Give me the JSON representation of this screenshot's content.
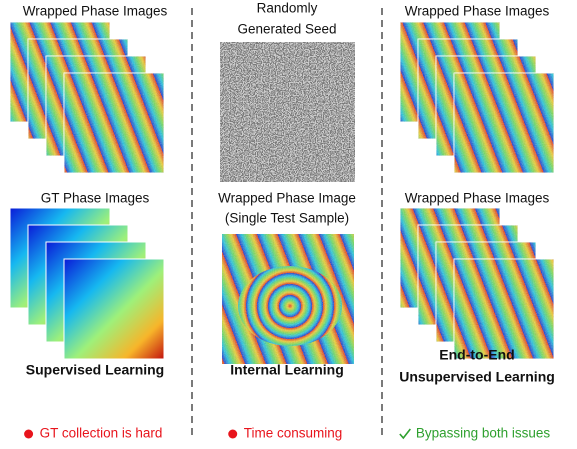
{
  "columns": [
    {
      "top_label": [
        "Wrapped Phase Images"
      ],
      "middle_label": [
        "GT Phase Images"
      ],
      "method": [
        "Supervised Learning"
      ],
      "note": "GT collection is hard"
    },
    {
      "top_label": [
        "Randomly",
        "Generated Seed"
      ],
      "middle_label": [
        "Wrapped Phase Image",
        "(Single Test Sample)"
      ],
      "method": [
        "Internal Learning"
      ],
      "note": "Time consuming"
    },
    {
      "top_label": [
        "Wrapped Phase Images"
      ],
      "middle_label": [
        "Wrapped Phase Images"
      ],
      "method": [
        "End-to-End",
        "Unsupervised Learning"
      ],
      "note": "Bypassing both issues"
    }
  ]
}
